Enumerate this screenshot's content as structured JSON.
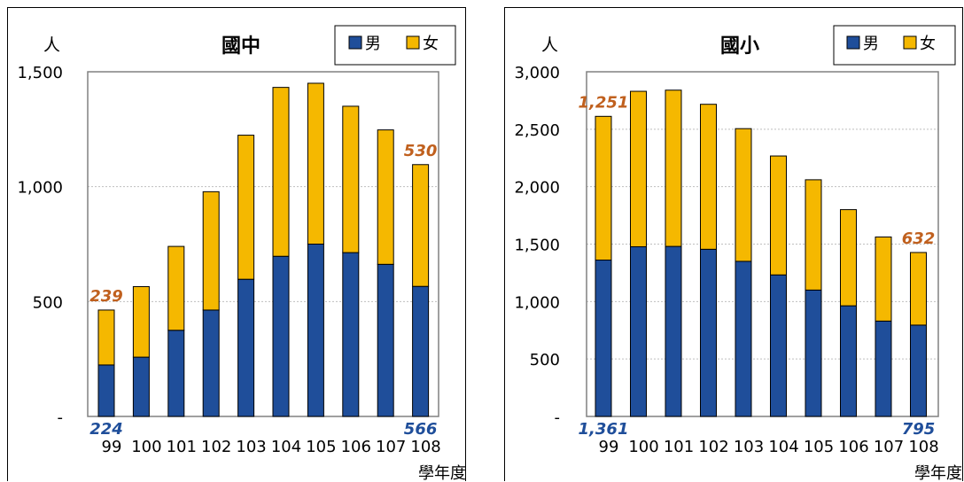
{
  "chart_data": [
    {
      "type": "bar",
      "stacked": true,
      "title": "國中",
      "unit_label": "人",
      "xlabel": "學年度",
      "categories": [
        "99",
        "100",
        "101",
        "102",
        "103",
        "104",
        "105",
        "106",
        "107",
        "108"
      ],
      "series": [
        {
          "name": "男",
          "color": "#1F4E9A",
          "values": [
            224,
            258,
            375,
            463,
            597,
            697,
            750,
            713,
            662,
            566
          ]
        },
        {
          "name": "女",
          "color": "#F5B800",
          "values": [
            239,
            307,
            365,
            515,
            627,
            735,
            700,
            637,
            585,
            530
          ]
        }
      ],
      "ylim": [
        0,
        1500
      ],
      "yticks": [
        {
          "value": 0,
          "label": "-"
        },
        {
          "value": 500,
          "label": "500"
        },
        {
          "value": 1000,
          "label": "1,000"
        },
        {
          "value": 1500,
          "label": "1,500"
        }
      ],
      "grid": true,
      "legend": "top-right",
      "data_labels": {
        "female": [
          {
            "index": 0,
            "label": "239"
          },
          {
            "index": 9,
            "label": "530"
          }
        ],
        "male": [
          {
            "index": 0,
            "label": "224"
          },
          {
            "index": 9,
            "label": "566"
          }
        ]
      }
    },
    {
      "type": "bar",
      "stacked": true,
      "title": "國小",
      "unit_label": "人",
      "xlabel": "學年度",
      "categories": [
        "99",
        "100",
        "101",
        "102",
        "103",
        "104",
        "105",
        "106",
        "107",
        "108"
      ],
      "series": [
        {
          "name": "男",
          "color": "#1F4E9A",
          "values": [
            1361,
            1477,
            1480,
            1455,
            1350,
            1232,
            1100,
            963,
            830,
            795
          ]
        },
        {
          "name": "女",
          "color": "#F5B800",
          "values": [
            1251,
            1353,
            1360,
            1262,
            1155,
            1035,
            960,
            837,
            732,
            632
          ]
        }
      ],
      "ylim": [
        0,
        3000
      ],
      "yticks": [
        {
          "value": 0,
          "label": "-"
        },
        {
          "value": 500,
          "label": "500"
        },
        {
          "value": 1000,
          "label": "1,000"
        },
        {
          "value": 1500,
          "label": "1,500"
        },
        {
          "value": 2000,
          "label": "2,000"
        },
        {
          "value": 2500,
          "label": "2,500"
        },
        {
          "value": 3000,
          "label": "3,000"
        }
      ],
      "grid": true,
      "legend": "top-right",
      "data_labels": {
        "female": [
          {
            "index": 0,
            "label": "1,251"
          },
          {
            "index": 9,
            "label": "632"
          }
        ],
        "male": [
          {
            "index": 0,
            "label": "1,361"
          },
          {
            "index": 9,
            "label": "795"
          }
        ]
      }
    }
  ]
}
